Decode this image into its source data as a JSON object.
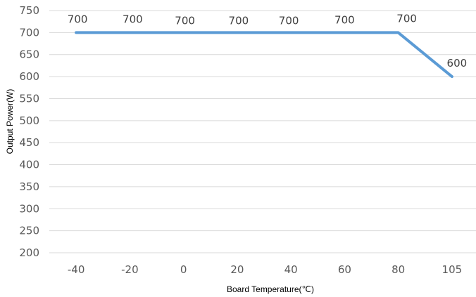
{
  "chart_data": {
    "type": "line",
    "categories": [
      "-40",
      "-20",
      "0",
      "20",
      "40",
      "60",
      "80",
      "105"
    ],
    "series": [
      {
        "values": [
          700,
          700,
          700,
          700,
          700,
          700,
          700,
          600
        ],
        "color": "#5b9bd5"
      }
    ],
    "data_labels": [
      "700",
      "700",
      "700",
      "700",
      "700",
      "700",
      "700",
      "600"
    ],
    "xlabel": "Board Temperature(℃)",
    "ylabel": "Output Power(W)",
    "ylim": [
      200,
      750
    ],
    "ytick_step": 50,
    "grid": true,
    "gridline_color": "#d9d9d9",
    "legend": "none"
  }
}
